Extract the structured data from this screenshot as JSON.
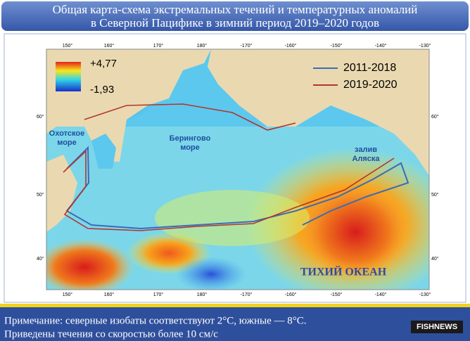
{
  "title": {
    "line1": "Общая карта-схема экстремальных течений и температурных аномалий",
    "line2": "в Северной Пацифике в зимний период 2019–2020 годов"
  },
  "map": {
    "legend": {
      "max": "+4,77",
      "min": "-1,93"
    },
    "lines": [
      {
        "label": "2011-2018",
        "color": "#3d6bb8"
      },
      {
        "label": "2019-2020",
        "color": "#b3342e"
      }
    ],
    "labels": {
      "okhotsk": [
        "Охотское",
        "море"
      ],
      "bering": [
        "Берингово",
        "море"
      ],
      "alaska": [
        "залив",
        "Аляска"
      ],
      "pacific": "ТИХИЙ ОКЕАН"
    },
    "lon_ticks": [
      "150°",
      "160°",
      "170°",
      "180°",
      "-170°",
      "-160°",
      "-150°",
      "-140°",
      "-130°"
    ],
    "lat_ticks": [
      "60°",
      "50°",
      "40°"
    ]
  },
  "footnote": {
    "lines": [
      "Примечание: северные изобаты соответствуют 2°С, южные — 8°С.",
      "Приведены течения со скоростью более 10 см/с"
    ]
  },
  "logo": "FISHNEWS"
}
